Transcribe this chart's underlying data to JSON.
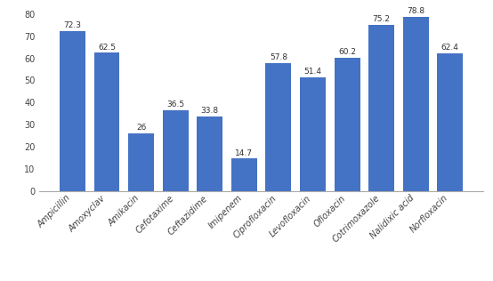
{
  "categories": [
    "Ampicillin",
    "Amoxyclav",
    "Amikacin",
    "Cefotaxime",
    "Ceftazidime",
    "Imipenem",
    "Ciprofloxacin",
    "Levofloxacin",
    "Ofloxacin",
    "Cotrimoxazole",
    "Nalidixic acid",
    "Norfloxacin"
  ],
  "values": [
    72.3,
    62.5,
    26.0,
    36.5,
    33.8,
    14.7,
    57.8,
    51.4,
    60.2,
    75.2,
    78.8,
    62.4
  ],
  "bar_color": "#4472C4",
  "ylim": [
    0,
    80
  ],
  "yticks": [
    0,
    10,
    20,
    30,
    40,
    50,
    60,
    70,
    80
  ],
  "tick_fontsize": 7.0,
  "value_fontsize": 6.5,
  "background_color": "#FFFFFF",
  "bar_width": 0.75,
  "figsize": [
    5.54,
    3.16
  ],
  "dpi": 100
}
